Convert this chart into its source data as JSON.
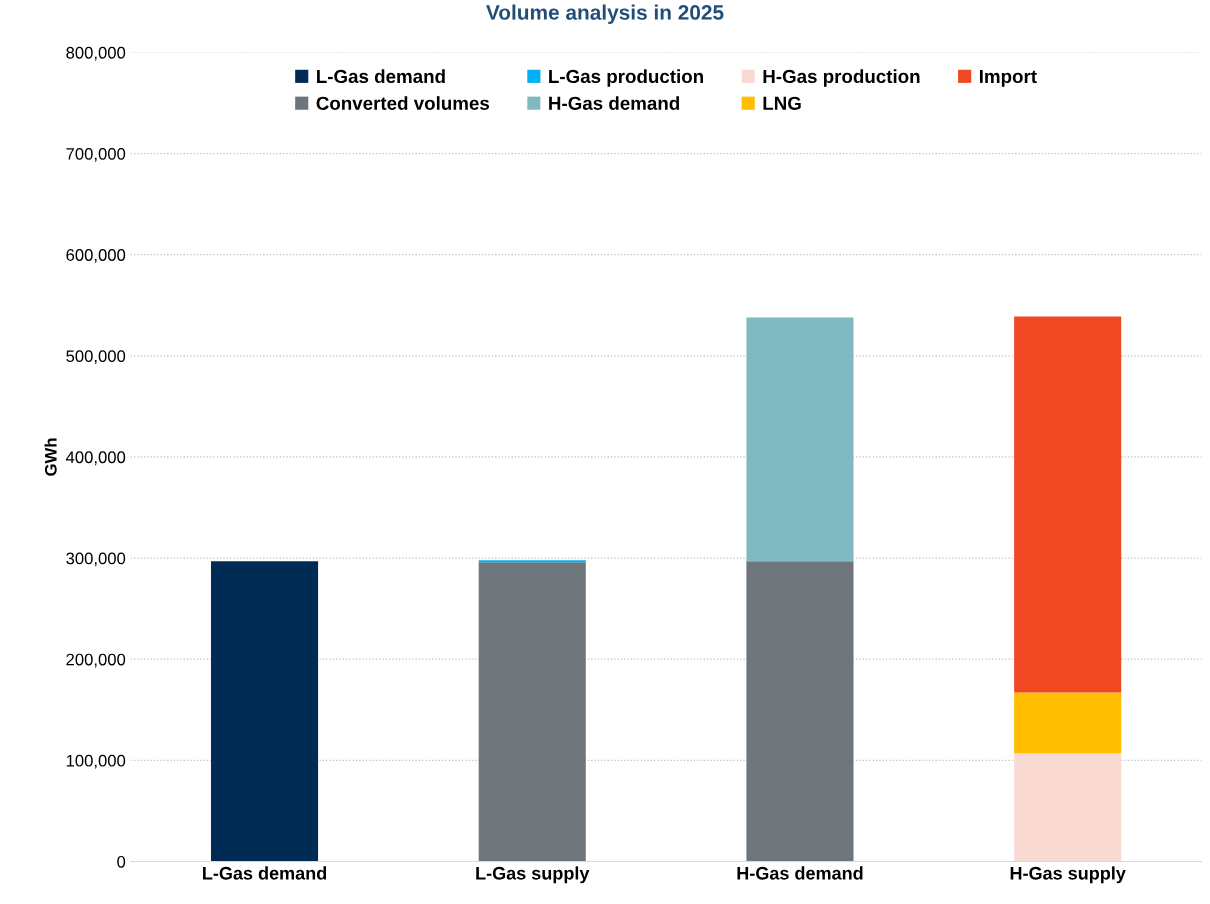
{
  "chart_data": {
    "type": "bar",
    "stacked": true,
    "title": "Volume analysis in 2025",
    "ylabel": "GWh",
    "categories": [
      "L-Gas demand",
      "L-Gas supply",
      "H-Gas demand",
      "H-Gas supply"
    ],
    "series": [
      {
        "name": "L-Gas demand",
        "color": "#002b54",
        "values": [
          297000,
          null,
          null,
          null
        ]
      },
      {
        "name": "Converted volumes",
        "color": "#6e757b",
        "values": [
          null,
          296000,
          297000,
          null
        ]
      },
      {
        "name": "L-Gas production",
        "color": "#00b0f0",
        "values": [
          null,
          2000,
          null,
          null
        ]
      },
      {
        "name": "H-Gas demand",
        "color": "#80b9c2",
        "values": [
          null,
          null,
          241000,
          null
        ]
      },
      {
        "name": "H-Gas production",
        "color": "#fad9d3",
        "values": [
          null,
          null,
          null,
          107000
        ]
      },
      {
        "name": "LNG",
        "color": "#ffbf00",
        "values": [
          null,
          null,
          null,
          60000
        ]
      },
      {
        "name": "Import",
        "color": "#ef4823",
        "values": [
          null,
          null,
          null,
          372000
        ]
      }
    ],
    "ylim": [
      0,
      800000
    ],
    "yticks": [
      {
        "value": 0,
        "label": "0"
      },
      {
        "value": 100000,
        "label": "100,000"
      },
      {
        "value": 200000,
        "label": "200,000"
      },
      {
        "value": 300000,
        "label": "300,000"
      },
      {
        "value": 400000,
        "label": "400,000"
      },
      {
        "value": 500000,
        "label": "500,000"
      },
      {
        "value": 600000,
        "label": "600,000"
      },
      {
        "value": 700000,
        "label": "700,000"
      },
      {
        "value": 800000,
        "label": "800,000"
      }
    ],
    "grid": "y",
    "legend": "top"
  }
}
